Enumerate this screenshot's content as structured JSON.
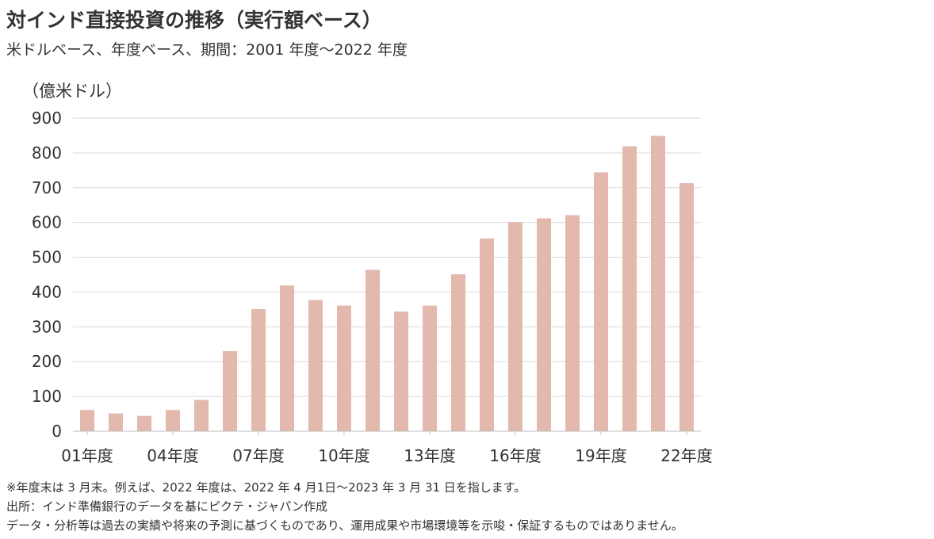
{
  "title": "対インド直接投資の推移（実行額ベース）",
  "subtitle": "米ドルベース、年度ベース、期間：2001 年度～2022 年度",
  "notes": [
    "※年度末は 3 月末。例えば、2022 年度は、2022 年 4 月1日～2023 年 3 月 31 日を指します。",
    "出所：インド準備銀行のデータを基にピクテ・ジャパン作成",
    "データ・分析等は過去の実績や将来の予測に基づくものであり、運用成果や市場環境等を示唆・保証するものではありません。"
  ],
  "chart_data": {
    "type": "bar",
    "title": "対インド直接投資の推移（実行額ベース）",
    "ylabel": "（億米ドル）",
    "xlabel": "",
    "ylim": [
      0,
      900
    ],
    "yticks": [
      0,
      100,
      200,
      300,
      400,
      500,
      600,
      700,
      800,
      900
    ],
    "grid": true,
    "bar_color": "#e3b9ae",
    "grid_color": "#d9d9d9",
    "categories": [
      "01年度",
      "02年度",
      "03年度",
      "04年度",
      "05年度",
      "06年度",
      "07年度",
      "08年度",
      "09年度",
      "10年度",
      "11年度",
      "12年度",
      "13年度",
      "14年度",
      "15年度",
      "16年度",
      "17年度",
      "18年度",
      "19年度",
      "20年度",
      "21年度",
      "22年度"
    ],
    "tick_labels": [
      "01年度",
      "",
      "",
      "04年度",
      "",
      "",
      "07年度",
      "",
      "",
      "10年度",
      "",
      "",
      "13年度",
      "",
      "",
      "16年度",
      "",
      "",
      "19年度",
      "",
      "",
      "22年度"
    ],
    "values": [
      61,
      51,
      44,
      61,
      90,
      230,
      351,
      419,
      377,
      361,
      464,
      344,
      361,
      451,
      554,
      601,
      612,
      621,
      744,
      819,
      849,
      713
    ]
  }
}
